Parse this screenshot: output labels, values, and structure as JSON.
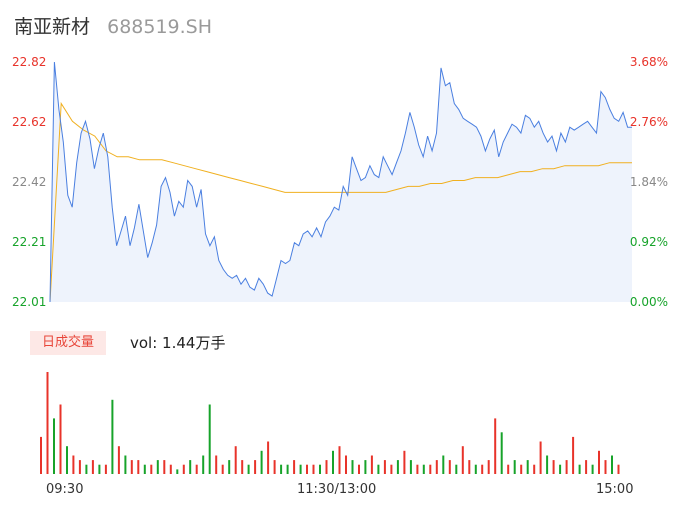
{
  "header": {
    "name": "南亚新材",
    "code": "688519.SH"
  },
  "price_axis": {
    "labels": [
      "22.82",
      "22.62",
      "22.42",
      "22.21",
      "22.01"
    ],
    "values": [
      22.82,
      22.62,
      22.42,
      22.21,
      22.01
    ],
    "colors": [
      "#e8332a",
      "#e8332a",
      "#888888",
      "#17a32a",
      "#17a32a"
    ]
  },
  "pct_axis": {
    "labels": [
      "3.68%",
      "2.76%",
      "1.84%",
      "0.92%",
      "0.00%"
    ],
    "colors": [
      "#e8332a",
      "#e8332a",
      "#888888",
      "#17a32a",
      "#17a32a"
    ]
  },
  "volume_legend": {
    "badge": "日成交量",
    "text": "vol: 1.44万手"
  },
  "time_axis": [
    "09:30",
    "11:30/13:00",
    "15:00"
  ],
  "colors": {
    "price_line": "#4a7fe0",
    "avg_line": "#f0b020",
    "area_fill": "#eef3fc",
    "up": "#e8332a",
    "down": "#17a32a"
  },
  "chart_data": {
    "type": "line",
    "title": "",
    "xlabel": "",
    "ylabel": "",
    "ylim": [
      22.01,
      22.82
    ],
    "series": [
      {
        "name": "price",
        "values": [
          22.01,
          22.82,
          22.66,
          22.55,
          22.37,
          22.33,
          22.48,
          22.58,
          22.62,
          22.56,
          22.46,
          22.53,
          22.58,
          22.5,
          22.33,
          22.2,
          22.25,
          22.3,
          22.2,
          22.26,
          22.34,
          22.25,
          22.16,
          22.21,
          22.27,
          22.4,
          22.43,
          22.38,
          22.3,
          22.35,
          22.33,
          22.42,
          22.4,
          22.33,
          22.39,
          22.24,
          22.2,
          22.23,
          22.15,
          22.12,
          22.1,
          22.09,
          22.1,
          22.07,
          22.09,
          22.06,
          22.05,
          22.09,
          22.07,
          22.04,
          22.03,
          22.09,
          22.15,
          22.14,
          22.15,
          22.21,
          22.2,
          22.24,
          22.25,
          22.23,
          22.26,
          22.23,
          22.28,
          22.3,
          22.33,
          22.32,
          22.4,
          22.37,
          22.5,
          22.46,
          22.42,
          22.43,
          22.47,
          22.44,
          22.43,
          22.5,
          22.47,
          22.44,
          22.48,
          22.52,
          22.58,
          22.65,
          22.6,
          22.54,
          22.5,
          22.57,
          22.52,
          22.58,
          22.8,
          22.74,
          22.75,
          22.68,
          22.66,
          22.63,
          22.62,
          22.61,
          22.6,
          22.57,
          22.52,
          22.56,
          22.59,
          22.5,
          22.55,
          22.58,
          22.61,
          22.6,
          22.58,
          22.64,
          22.63,
          22.6,
          22.62,
          22.58,
          22.55,
          22.57,
          22.52,
          22.58,
          22.55,
          22.6,
          22.59,
          22.6,
          22.61,
          22.62,
          22.6,
          22.58,
          22.72,
          22.7,
          22.66,
          22.63,
          22.62,
          22.65,
          22.6,
          22.6
        ],
        "color": "#4a7fe0"
      },
      {
        "name": "average",
        "values": [
          22.01,
          22.68,
          22.62,
          22.59,
          22.57,
          22.52,
          22.5,
          22.5,
          22.49,
          22.49,
          22.49,
          22.48,
          22.47,
          22.46,
          22.45,
          22.44,
          22.43,
          22.42,
          22.41,
          22.4,
          22.39,
          22.38,
          22.38,
          22.38,
          22.38,
          22.38,
          22.38,
          22.38,
          22.38,
          22.38,
          22.38,
          22.39,
          22.4,
          22.4,
          22.41,
          22.41,
          22.42,
          22.42,
          22.43,
          22.43,
          22.43,
          22.44,
          22.45,
          22.45,
          22.46,
          22.46,
          22.47,
          22.47,
          22.47,
          22.47,
          22.48,
          22.48,
          22.48
        ],
        "color": "#f0b020"
      }
    ],
    "volume": {
      "unit": "vol",
      "values": [
        8,
        22,
        12,
        15,
        6,
        4,
        3,
        2,
        3,
        2,
        2,
        16,
        6,
        4,
        3,
        3,
        2,
        2,
        3,
        3,
        2,
        1,
        2,
        3,
        2,
        4,
        15,
        4,
        2,
        3,
        6,
        3,
        2,
        3,
        5,
        7,
        3,
        2,
        2,
        3,
        2,
        2,
        2,
        2,
        3,
        5,
        6,
        4,
        3,
        2,
        3,
        4,
        2,
        3,
        2,
        3,
        5,
        3,
        2,
        2,
        2,
        3,
        4,
        3,
        2,
        6,
        3,
        2,
        2,
        3,
        12,
        9,
        2,
        3,
        2,
        3,
        2,
        7,
        4,
        3,
        2,
        3,
        8,
        2,
        3,
        2,
        5,
        3,
        4,
        2
      ],
      "up": [
        true,
        true,
        false,
        true,
        false,
        true,
        true,
        false,
        true,
        false,
        true,
        false,
        true,
        false,
        true,
        true,
        false,
        true,
        false,
        true,
        true,
        false,
        true,
        false,
        true,
        false,
        false,
        true,
        true,
        false,
        true,
        true,
        false,
        true,
        false,
        true,
        true,
        false,
        false,
        true,
        false,
        true,
        true,
        false,
        true,
        false,
        true,
        true,
        false,
        true,
        false,
        true,
        false,
        true,
        true,
        false,
        true,
        false,
        true,
        false,
        true,
        true,
        false,
        true,
        false,
        true,
        true,
        false,
        true,
        true,
        true,
        false,
        true,
        false,
        true,
        false,
        true,
        true,
        false,
        true,
        false,
        true,
        true,
        false,
        true,
        false,
        true,
        true,
        false,
        true
      ]
    }
  }
}
